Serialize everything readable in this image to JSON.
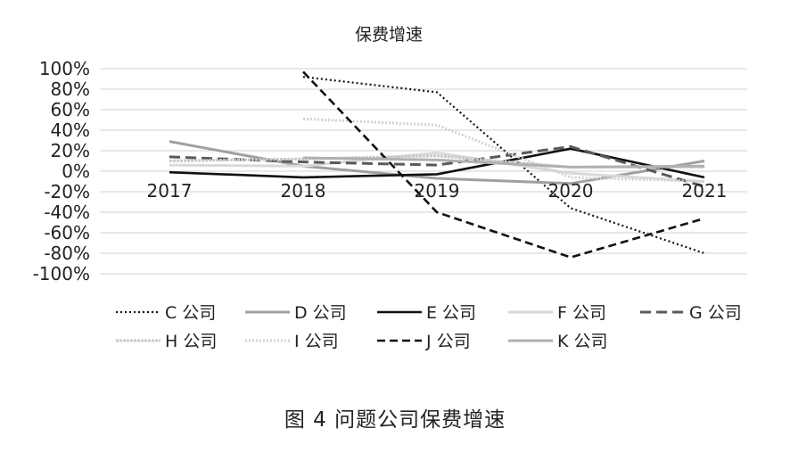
{
  "chart_data": {
    "type": "line",
    "title": "保费增速",
    "categories": [
      "2017",
      "2018",
      "2019",
      "2020",
      "2021"
    ],
    "ylim": [
      -100,
      100
    ],
    "yticks": [
      "100%",
      "80%",
      "60%",
      "40%",
      "20%",
      "0%",
      "-20%",
      "-40%",
      "-60%",
      "-80%",
      "-100%"
    ],
    "grid": true,
    "legend_position": "bottom",
    "series": [
      {
        "name": "C 公司",
        "values": [
          null,
          92,
          77,
          -36,
          -80
        ],
        "color": "#111111",
        "dash": "2,3",
        "width": 2.2
      },
      {
        "name": "D 公司",
        "values": [
          29,
          5,
          -7,
          -12,
          10
        ],
        "color": "#a0a0a0",
        "dash": "",
        "width": 3
      },
      {
        "name": "E 公司",
        "values": [
          -1,
          -6,
          -3,
          22,
          -6
        ],
        "color": "#111111",
        "dash": "",
        "width": 2.6
      },
      {
        "name": "F 公司",
        "values": [
          6,
          5,
          18,
          -2,
          -10
        ],
        "color": "#d9d9d9",
        "dash": "",
        "width": 3
      },
      {
        "name": "G 公司",
        "values": [
          14,
          9,
          6,
          24,
          -15
        ],
        "color": "#5a5a5a",
        "dash": "12,6",
        "width": 3
      },
      {
        "name": "H 公司",
        "values": [
          10,
          12,
          15,
          4,
          4
        ],
        "color": "#c8c8c8",
        "dash": "3,1",
        "width": 3
      },
      {
        "name": "I 公司",
        "values": [
          null,
          51,
          45,
          -6,
          -10
        ],
        "color": "#d2d2d2",
        "dash": "2,2",
        "width": 3
      },
      {
        "name": "J 公司",
        "values": [
          null,
          97,
          -40,
          -84,
          -46
        ],
        "color": "#111111",
        "dash": "9,5",
        "width": 2.6
      },
      {
        "name": "K 公司",
        "values": [
          null,
          13,
          11,
          4,
          5
        ],
        "color": "#b0b0b0",
        "dash": "",
        "width": 3
      }
    ]
  },
  "caption": "图 4    问题公司保费增速"
}
